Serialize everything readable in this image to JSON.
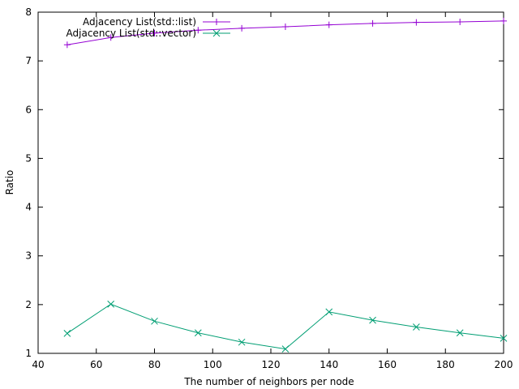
{
  "chart_data": {
    "type": "line",
    "title": "",
    "xlabel": "The number of neighbors per node",
    "ylabel": "Ratio",
    "xlim": [
      40,
      200
    ],
    "ylim": [
      1,
      8
    ],
    "xticks": [
      "40",
      "60",
      "80",
      "100",
      "120",
      "140",
      "160",
      "180",
      "200"
    ],
    "yticks": [
      "1",
      "2",
      "3",
      "4",
      "5",
      "6",
      "7",
      "8"
    ],
    "grid": false,
    "legend_position": "top-left",
    "x": [
      50,
      65,
      80,
      95,
      110,
      125,
      140,
      155,
      170,
      185,
      200
    ],
    "series": [
      {
        "name": "Adjacency List(std::list)",
        "color": "#9400d3",
        "marker": "plus",
        "values": [
          7.33,
          7.48,
          7.57,
          7.63,
          7.67,
          7.7,
          7.74,
          7.77,
          7.79,
          7.8,
          7.82
        ]
      },
      {
        "name": "Adjacency List(std::vector)",
        "color": "#009e73",
        "marker": "cross",
        "values": [
          1.41,
          2.01,
          1.66,
          1.42,
          1.23,
          1.09,
          1.85,
          1.68,
          1.54,
          1.42,
          1.31
        ]
      }
    ]
  }
}
